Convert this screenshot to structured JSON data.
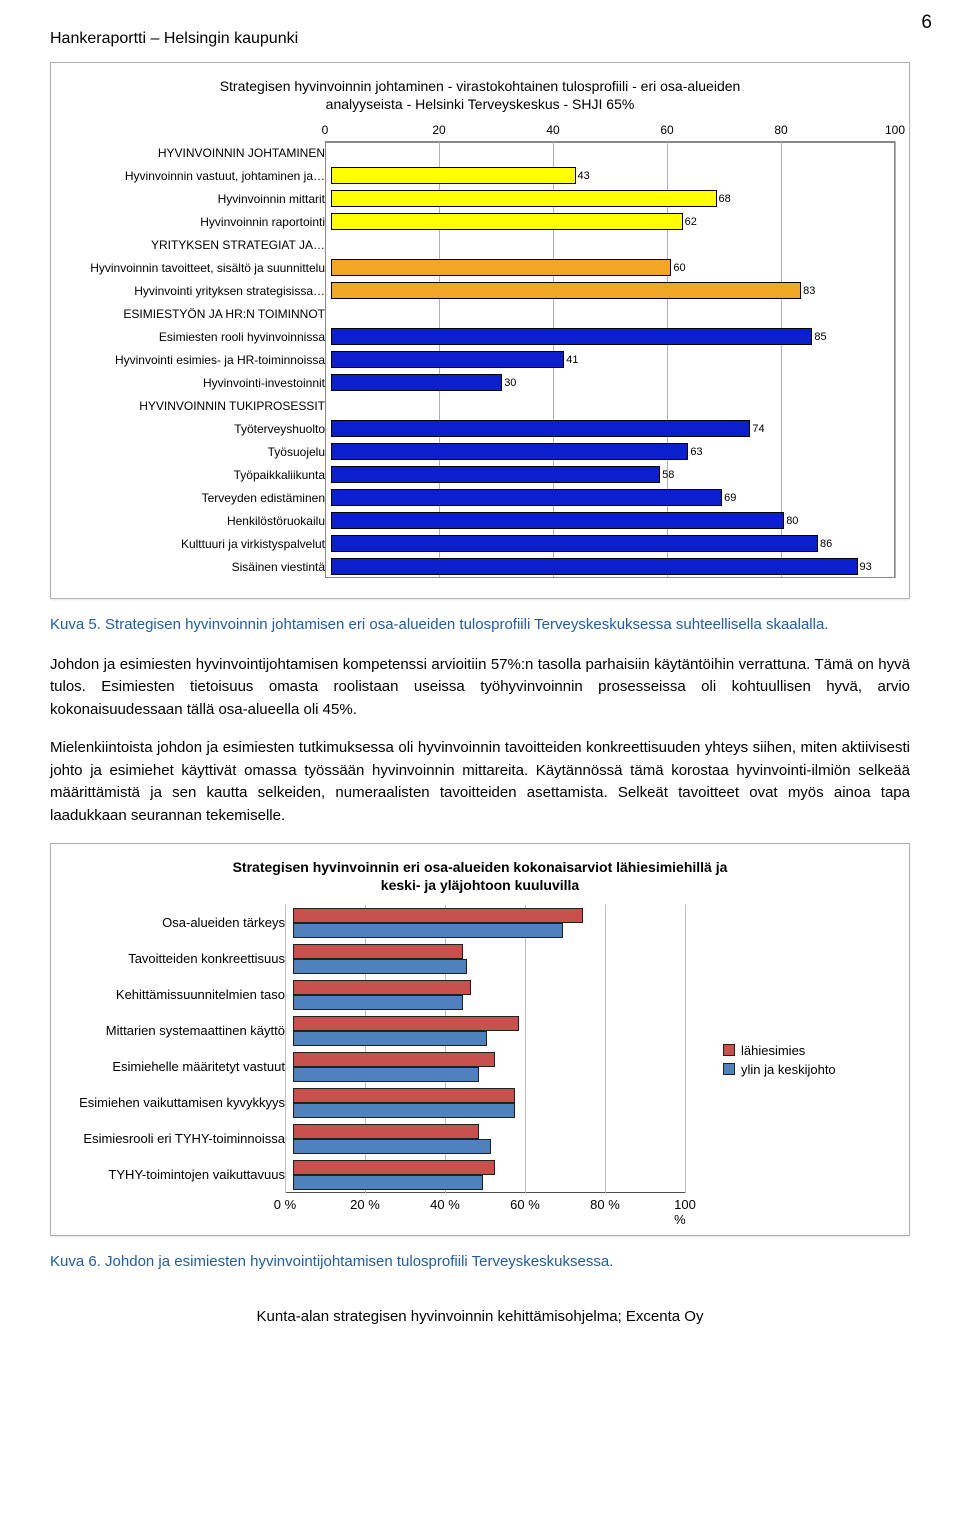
{
  "page_number": "6",
  "report_header": "Hankeraportti – Helsingin kaupunki",
  "chart1": {
    "title_line1": "Strategisen hyvinvoinnin johtaminen - virastokohtainen tulosprofiili - eri osa-alueiden",
    "title_line2": "analyyseista - Helsinki Terveyskeskus - SHJI 65%",
    "x_ticks": [
      0,
      20,
      40,
      60,
      80,
      100
    ],
    "x_max": 100,
    "colors": {
      "yellow": "#ffff00",
      "orange": "#f2a724",
      "blue": "#0b1fcf",
      "border": "#000000",
      "grid": "#b0b0b7"
    },
    "rows": [
      {
        "label": "HYVINVOINNIN JOHTAMINEN",
        "type": "header"
      },
      {
        "label": "Hyvinvoinnin vastuut, johtaminen ja…",
        "value": 43,
        "color": "yellow"
      },
      {
        "label": "Hyvinvoinnin mittarit",
        "value": 68,
        "color": "yellow"
      },
      {
        "label": "Hyvinvoinnin raportointi",
        "value": 62,
        "color": "yellow"
      },
      {
        "label": "YRITYKSEN STRATEGIAT JA…",
        "type": "header"
      },
      {
        "label": "Hyvinvoinnin tavoitteet, sisältö ja suunnittelu",
        "value": 60,
        "color": "orange"
      },
      {
        "label": "Hyvinvointi yrityksen strategisissa…",
        "value": 83,
        "color": "orange"
      },
      {
        "label": "ESIMIESTYÖN JA HR:N TOIMINNOT",
        "type": "header"
      },
      {
        "label": "Esimiesten rooli hyvinvoinnissa",
        "value": 85,
        "color": "blue"
      },
      {
        "label": "Hyvinvointi esimies- ja HR-toiminnoissa",
        "value": 41,
        "color": "blue"
      },
      {
        "label": "Hyvinvointi-investoinnit",
        "value": 30,
        "color": "blue"
      },
      {
        "label": "HYVINVOINNIN TUKIPROSESSIT",
        "type": "header"
      },
      {
        "label": "Työterveyshuolto",
        "value": 74,
        "color": "blue"
      },
      {
        "label": "Työsuojelu",
        "value": 63,
        "color": "blue"
      },
      {
        "label": "Työpaikkaliikunta",
        "value": 58,
        "color": "blue"
      },
      {
        "label": "Terveyden edistäminen",
        "value": 69,
        "color": "blue"
      },
      {
        "label": "Henkilöstöruokailu",
        "value": 80,
        "color": "blue"
      },
      {
        "label": "Kulttuuri ja virkistyspalvelut",
        "value": 86,
        "color": "blue"
      },
      {
        "label": "Sisäinen viestintä",
        "value": 93,
        "color": "blue"
      }
    ]
  },
  "caption1_prefix": "Kuva 5. ",
  "caption1_text": "Strategisen hyvinvoinnin johtamisen eri osa-alueiden tulosprofiili Terveyskeskuksessa suhteellisella skaalalla.",
  "para1": "Johdon ja esimiesten hyvinvointijohtamisen kompetenssi arvioitiin 57%:n tasolla parhaisiin käytäntöihin verrattuna. Tämä on hyvä tulos. Esimiesten tietoisuus omasta roolistaan useissa työhyvinvoinnin prosesseissa oli kohtuullisen hyvä, arvio kokonaisuudessaan tällä osa-alueella oli 45%.",
  "para2": "Mielenkiintoista johdon ja esimiesten tutkimuksessa oli hyvinvoinnin tavoitteiden konkreettisuuden yhteys siihen, miten aktiivisesti johto ja esimiehet käyttivät omassa työssään hyvinvoinnin mittareita. Käytännössä tämä korostaa hyvinvointi-ilmiön selkeää määrittämistä ja sen kautta selkeiden, numeraalisten tavoitteiden asettamista. Selkeät tavoitteet ovat myös ainoa tapa laadukkaan seurannan tekemiselle.",
  "chart2": {
    "title_line1": "Strategisen hyvinvoinnin eri osa-alueiden kokonaisarviot lähiesimiehillä ja",
    "title_line2": "keski- ja yläjohtoon kuuluvilla",
    "x_ticks": [
      "0 %",
      "20 %",
      "40 %",
      "60 %",
      "80 %",
      "100 %"
    ],
    "x_tick_positions": [
      0,
      20,
      40,
      60,
      80,
      100
    ],
    "x_max": 100,
    "colors": {
      "series_a": "#c8504d",
      "series_b": "#4f81bd",
      "grid": "#bfbfbf"
    },
    "legend": [
      {
        "label": "lähiesimies",
        "color": "series_a"
      },
      {
        "label": "ylin ja keskijohto",
        "color": "series_b"
      }
    ],
    "rows": [
      {
        "label": "Osa-alueiden tärkeys",
        "a": 72,
        "b": 67
      },
      {
        "label": "Tavoitteiden konkreettisuus",
        "a": 42,
        "b": 43
      },
      {
        "label": "Kehittämissuunnitelmien taso",
        "a": 44,
        "b": 42
      },
      {
        "label": "Mittarien systemaattinen käyttö",
        "a": 56,
        "b": 48
      },
      {
        "label": "Esimiehelle määritetyt vastuut",
        "a": 50,
        "b": 46
      },
      {
        "label": "Esimiehen vaikuttamisen kyvykkyys",
        "a": 55,
        "b": 55
      },
      {
        "label": "Esimiesrooli eri TYHY-toiminnoissa",
        "a": 46,
        "b": 49
      },
      {
        "label": "TYHY-toimintojen vaikuttavuus",
        "a": 50,
        "b": 47
      }
    ]
  },
  "caption2_prefix": "Kuva 6. ",
  "caption2_text": "Johdon ja esimiesten hyvinvointijohtamisen tulosprofiili Terveyskeskuksessa.",
  "footer": "Kunta-alan strategisen hyvinvoinnin kehittämisohjelma; Excenta Oy"
}
